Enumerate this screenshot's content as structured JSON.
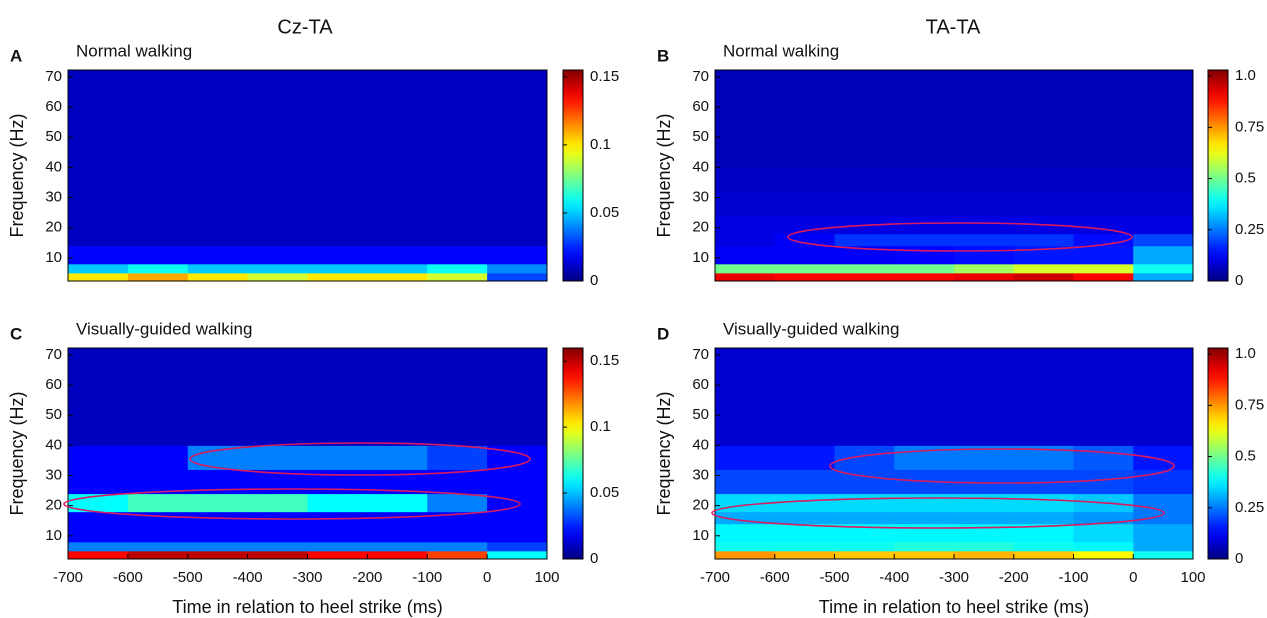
{
  "columns": [
    "Cz-TA",
    "TA-TA"
  ],
  "chart_data": [
    {
      "type": "heatmap",
      "letter": "A",
      "title": "Normal walking",
      "ylabel": "Frequency (Hz)",
      "colormap": "jet",
      "xlim": [
        -700,
        100
      ],
      "ylim": [
        2.3,
        72.3
      ],
      "yticks": [
        10,
        20,
        30,
        40,
        50,
        60,
        70
      ],
      "x_edges": [
        -700,
        -600,
        -500,
        -400,
        -300,
        -200,
        -100,
        0,
        100
      ],
      "y_edges": [
        2.3,
        5,
        8,
        14,
        18,
        24,
        32,
        40,
        72.3
      ],
      "z": [
        [
          0.1,
          0.11,
          0.1,
          0.09,
          0.1,
          0.1,
          0.09,
          0.03
        ],
        [
          0.05,
          0.06,
          0.05,
          0.05,
          0.05,
          0.05,
          0.06,
          0.04
        ],
        [
          0.02,
          0.02,
          0.02,
          0.02,
          0.02,
          0.02,
          0.02,
          0.02
        ],
        [
          0.01,
          0.01,
          0.01,
          0.01,
          0.01,
          0.01,
          0.01,
          0.01
        ],
        [
          0.01,
          0.01,
          0.01,
          0.01,
          0.01,
          0.01,
          0.01,
          0.01
        ],
        [
          0.01,
          0.01,
          0.01,
          0.01,
          0.01,
          0.01,
          0.01,
          0.01
        ],
        [
          0.01,
          0.01,
          0.01,
          0.01,
          0.01,
          0.01,
          0.01,
          0.01
        ],
        [
          0.01,
          0.01,
          0.01,
          0.01,
          0.01,
          0.01,
          0.01,
          0.01
        ]
      ],
      "clim": [
        0,
        0.155
      ],
      "cticks": [
        0,
        0.05,
        0.1,
        0.15
      ]
    },
    {
      "type": "heatmap",
      "letter": "B",
      "title": "Normal walking",
      "ylabel": "Frequency (Hz)",
      "colormap": "jet",
      "xlim": [
        -700,
        100
      ],
      "ylim": [
        2.3,
        72.3
      ],
      "yticks": [
        10,
        20,
        30,
        40,
        50,
        60,
        70
      ],
      "x_edges": [
        -700,
        -600,
        -500,
        -400,
        -300,
        -200,
        -100,
        0,
        100
      ],
      "y_edges": [
        2.3,
        5,
        8,
        14,
        18,
        24,
        32,
        40,
        72.3
      ],
      "z": [
        [
          0.92,
          0.9,
          0.9,
          0.9,
          0.92,
          0.95,
          0.9,
          0.3
        ],
        [
          0.5,
          0.5,
          0.5,
          0.5,
          0.55,
          0.6,
          0.6,
          0.4
        ],
        [
          0.12,
          0.12,
          0.12,
          0.13,
          0.14,
          0.15,
          0.15,
          0.3
        ],
        [
          0.1,
          0.12,
          0.18,
          0.18,
          0.18,
          0.18,
          0.14,
          0.2
        ],
        [
          0.1,
          0.1,
          0.1,
          0.1,
          0.1,
          0.1,
          0.1,
          0.1
        ],
        [
          0.08,
          0.08,
          0.08,
          0.08,
          0.08,
          0.08,
          0.08,
          0.08
        ],
        [
          0.07,
          0.07,
          0.07,
          0.07,
          0.07,
          0.07,
          0.07,
          0.07
        ],
        [
          0.06,
          0.06,
          0.06,
          0.06,
          0.06,
          0.06,
          0.06,
          0.06
        ]
      ],
      "clim": [
        0,
        1.03
      ],
      "cticks": [
        0,
        0.25,
        0.5,
        0.75,
        {
          "value": 1,
          "label": "1.0"
        }
      ]
    },
    {
      "type": "heatmap",
      "letter": "C",
      "title": "Visually-guided walking",
      "ylabel": "Frequency (Hz)",
      "xlabel": "Time in relation to heel strike (ms)",
      "colormap": "jet",
      "xlim": [
        -700,
        100
      ],
      "xticks": [
        -700,
        -600,
        -500,
        -400,
        -300,
        -200,
        -100,
        0,
        100
      ],
      "ylim": [
        2.3,
        72.3
      ],
      "yticks": [
        10,
        20,
        30,
        40,
        50,
        60,
        70
      ],
      "x_edges": [
        -700,
        -600,
        -500,
        -400,
        -300,
        -200,
        -100,
        0,
        100
      ],
      "y_edges": [
        2.3,
        5,
        8,
        14,
        18,
        24,
        32,
        40,
        72.3
      ],
      "z": [
        [
          0.14,
          0.15,
          0.15,
          0.15,
          0.14,
          0.14,
          0.13,
          0.06
        ],
        [
          0.04,
          0.04,
          0.04,
          0.04,
          0.04,
          0.04,
          0.04,
          0.03
        ],
        [
          0.02,
          0.02,
          0.02,
          0.02,
          0.02,
          0.02,
          0.02,
          0.02
        ],
        [
          0.02,
          0.02,
          0.02,
          0.02,
          0.02,
          0.02,
          0.02,
          0.02
        ],
        [
          0.06,
          0.07,
          0.07,
          0.07,
          0.06,
          0.06,
          0.04,
          0.02
        ],
        [
          0.02,
          0.02,
          0.02,
          0.02,
          0.02,
          0.02,
          0.02,
          0.02
        ],
        [
          0.02,
          0.02,
          0.04,
          0.04,
          0.04,
          0.04,
          0.03,
          0.02
        ],
        [
          0.01,
          0.01,
          0.01,
          0.01,
          0.01,
          0.01,
          0.01,
          0.01
        ]
      ],
      "clim": [
        0,
        0.16
      ],
      "cticks": [
        0,
        0.05,
        0.1,
        0.15
      ]
    },
    {
      "type": "heatmap",
      "letter": "D",
      "title": "Visually-guided walking",
      "ylabel": "Frequency (Hz)",
      "xlabel": "Time in relation to heel strike (ms)",
      "colormap": "jet",
      "xlim": [
        -700,
        100
      ],
      "xticks": [
        -700,
        -600,
        -500,
        -400,
        -300,
        -200,
        -100,
        0,
        100
      ],
      "ylim": [
        2.3,
        72.3
      ],
      "yticks": [
        10,
        20,
        30,
        40,
        50,
        60,
        70
      ],
      "x_edges": [
        -700,
        -600,
        -500,
        -400,
        -300,
        -200,
        -100,
        0,
        100
      ],
      "y_edges": [
        2.3,
        5,
        8,
        14,
        18,
        24,
        32,
        40,
        72.3
      ],
      "z": [
        [
          0.75,
          0.72,
          0.7,
          0.7,
          0.72,
          0.7,
          0.65,
          0.4
        ],
        [
          0.4,
          0.4,
          0.4,
          0.42,
          0.42,
          0.4,
          0.38,
          0.3
        ],
        [
          0.38,
          0.38,
          0.38,
          0.38,
          0.38,
          0.38,
          0.35,
          0.3
        ],
        [
          0.3,
          0.3,
          0.3,
          0.3,
          0.3,
          0.3,
          0.28,
          0.25
        ],
        [
          0.35,
          0.35,
          0.35,
          0.35,
          0.35,
          0.35,
          0.33,
          0.25
        ],
        [
          0.2,
          0.2,
          0.2,
          0.2,
          0.2,
          0.2,
          0.2,
          0.18
        ],
        [
          0.15,
          0.15,
          0.2,
          0.25,
          0.25,
          0.25,
          0.22,
          0.15
        ],
        [
          0.08,
          0.08,
          0.08,
          0.08,
          0.08,
          0.08,
          0.08,
          0.08
        ]
      ],
      "clim": [
        0,
        1.03
      ],
      "cticks": [
        0,
        0.25,
        0.5,
        0.75,
        {
          "value": 1,
          "label": "1.0"
        }
      ]
    }
  ]
}
